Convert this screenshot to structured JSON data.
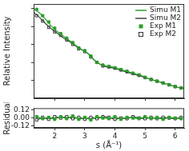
{
  "chart_data": [
    {
      "type": "line",
      "ylabel": "Relative Intensity",
      "xlim": [
        1.3,
        6.3
      ],
      "xticks": [
        2,
        3,
        4,
        5,
        6
      ],
      "ylim": [
        0,
        1.05
      ],
      "yticks": [
        0.2,
        0.4,
        0.6,
        0.8,
        1.0
      ],
      "tick_labels": false,
      "grid": false,
      "legend": "upper right",
      "series": [
        {
          "name": "Simu M1",
          "type": "line",
          "marker": "none",
          "line_style": "solid",
          "color": "#2ca02c",
          "x": [
            1.3,
            1.5,
            1.7,
            1.9,
            2.1,
            2.3,
            2.5,
            2.7,
            2.9,
            3.1,
            3.3,
            3.5,
            3.7,
            3.9,
            4.1,
            4.3,
            4.5,
            4.7,
            4.9,
            5.1,
            5.3,
            5.5,
            5.7,
            5.9,
            6.1,
            6.3
          ],
          "values": [
            1.0,
            0.95,
            0.88,
            0.8,
            0.74,
            0.69,
            0.64,
            0.59,
            0.54,
            0.5,
            0.43,
            0.38,
            0.36,
            0.35,
            0.33,
            0.31,
            0.29,
            0.27,
            0.25,
            0.22,
            0.2,
            0.18,
            0.16,
            0.14,
            0.12,
            0.11
          ]
        },
        {
          "name": "Simu M2",
          "type": "line",
          "marker": "none",
          "line_style": "solid",
          "color": "#3b4a3b",
          "x": [
            1.3,
            1.5,
            1.7,
            1.9,
            2.1,
            2.3,
            2.5,
            2.7,
            2.9,
            3.1,
            3.3,
            3.5,
            3.7,
            3.9,
            4.1,
            4.3,
            4.5,
            4.7,
            4.9,
            5.1,
            5.3,
            5.5,
            5.7,
            5.9,
            6.1,
            6.3
          ],
          "values": [
            0.96,
            0.9,
            0.83,
            0.77,
            0.72,
            0.67,
            0.63,
            0.58,
            0.54,
            0.5,
            0.43,
            0.38,
            0.35,
            0.34,
            0.32,
            0.3,
            0.28,
            0.26,
            0.24,
            0.22,
            0.2,
            0.18,
            0.16,
            0.14,
            0.12,
            0.11
          ]
        },
        {
          "name": "Exp M1",
          "type": "scatter",
          "marker": "square",
          "color": "#2ca02c",
          "x": [
            1.4,
            1.6,
            1.8,
            2.0,
            2.2,
            2.4,
            2.6,
            2.8,
            3.0,
            3.2,
            3.4,
            3.6,
            3.8,
            4.0,
            4.2,
            4.4,
            4.6,
            4.8,
            5.0,
            5.2,
            5.4,
            5.6,
            5.8,
            6.0,
            6.2
          ],
          "values": [
            0.99,
            0.92,
            0.85,
            0.78,
            0.72,
            0.67,
            0.62,
            0.56,
            0.53,
            0.47,
            0.4,
            0.37,
            0.355,
            0.34,
            0.32,
            0.3,
            0.28,
            0.26,
            0.235,
            0.21,
            0.19,
            0.17,
            0.15,
            0.13,
            0.115
          ]
        },
        {
          "name": "Exp M2",
          "type": "scatter",
          "marker": "open_square",
          "color": "#333333",
          "x": [
            1.4,
            1.6,
            1.8,
            2.0,
            2.2,
            2.4,
            2.6,
            2.8,
            3.0,
            3.2,
            3.4,
            3.6,
            3.8,
            4.0,
            4.2,
            4.4,
            4.6,
            4.8,
            5.0,
            5.2,
            5.4,
            5.6,
            5.8,
            6.0,
            6.2
          ],
          "values": [
            0.92,
            0.86,
            0.79,
            0.74,
            0.7,
            0.65,
            0.6,
            0.55,
            0.52,
            0.46,
            0.4,
            0.36,
            0.35,
            0.335,
            0.315,
            0.295,
            0.275,
            0.255,
            0.23,
            0.21,
            0.19,
            0.17,
            0.15,
            0.13,
            0.115
          ]
        }
      ]
    },
    {
      "type": "line",
      "xlabel": "s (Å⁻¹)",
      "ylabel": "Residual",
      "xlim": [
        1.3,
        6.3
      ],
      "xticks": [
        2,
        3,
        4,
        5,
        6
      ],
      "ylim": [
        -0.15,
        0.15
      ],
      "yticks": [
        -0.12,
        {
          "value": 0,
          "label": "0.00"
        },
        0.12
      ],
      "grid": false,
      "series": [
        {
          "name": "Exp M1",
          "type": "line",
          "marker": "square",
          "line_style": "solid",
          "color": "#2ca02c",
          "x": [
            1.4,
            1.6,
            1.8,
            2.0,
            2.2,
            2.4,
            2.6,
            2.8,
            3.0,
            3.2,
            3.4,
            3.6,
            3.8,
            4.0,
            4.2,
            4.4,
            4.6,
            4.8,
            5.0,
            5.2,
            5.4,
            5.6,
            5.8,
            6.0,
            6.2
          ],
          "values": [
            0.02,
            -0.01,
            0.01,
            -0.02,
            0.02,
            -0.01,
            0.03,
            -0.02,
            0.01,
            -0.03,
            0.02,
            0.0,
            -0.01,
            0.02,
            -0.02,
            0.01,
            0.0,
            -0.01,
            0.02,
            -0.01,
            0.01,
            -0.02,
            0.01,
            0.0,
            -0.01
          ]
        },
        {
          "name": "Exp M2",
          "type": "line",
          "marker": "open_square",
          "line_style": "solid",
          "color": "#333333",
          "x": [
            1.4,
            1.6,
            1.8,
            2.0,
            2.2,
            2.4,
            2.6,
            2.8,
            3.0,
            3.2,
            3.4,
            3.6,
            3.8,
            4.0,
            4.2,
            4.4,
            4.6,
            4.8,
            5.0,
            5.2,
            5.4,
            5.6,
            5.8,
            6.0,
            6.2
          ],
          "values": [
            -0.03,
            0.01,
            -0.02,
            0.02,
            0.0,
            0.02,
            -0.01,
            0.01,
            -0.02,
            0.01,
            -0.01,
            0.02,
            0.01,
            -0.02,
            0.0,
            -0.01,
            0.02,
            0.0,
            -0.01,
            0.01,
            -0.01,
            0.01,
            0.0,
            -0.01,
            0.01
          ]
        }
      ]
    }
  ]
}
